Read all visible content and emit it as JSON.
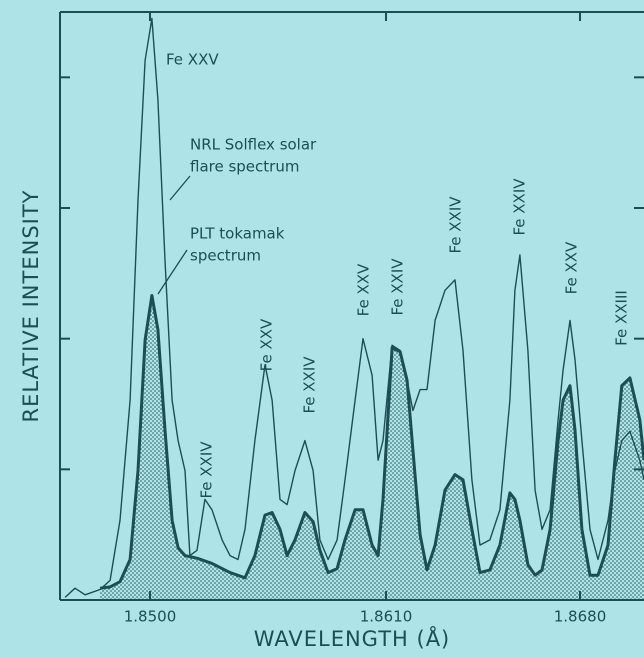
{
  "chart_data": {
    "type": "line",
    "xlabel": "WAVELENGTH (Å)",
    "ylabel": "RELATIVE INTENSITY",
    "xlim": [
      1.8458,
      1.87031
    ],
    "xticks": [
      {
        "value": 1.85,
        "label": "1.8500"
      },
      {
        "value": 1.861,
        "label": "1.8610"
      },
      {
        "value": 1.868,
        "label": "1.8680"
      }
    ],
    "ylim": [
      0,
      4.5
    ],
    "yticks": [
      1,
      2,
      3,
      4
    ],
    "annotations": [
      "Fe XXV",
      "Fe XXIV",
      "Fe XXV",
      "Fe XXIV",
      "Fe XXV",
      "Fe XXIV",
      "Fe XXIV",
      "Fe XXIV",
      "Fe XXV",
      "Fe XXIII"
    ],
    "series": [
      {
        "name": [
          "NRL Solflex solar",
          "flare spectrum"
        ],
        "color": "#1b4f55",
        "filled": false,
        "x": [
          1.84604,
          1.8465,
          1.84697,
          1.84767,
          1.84814,
          1.8486,
          1.84907,
          1.84944,
          1.84977,
          1.85009,
          1.85037,
          1.8507,
          1.85103,
          1.85131,
          1.85163,
          1.85186,
          1.85219,
          1.85256,
          1.85289,
          1.85336,
          1.85373,
          1.8541,
          1.85443,
          1.85489,
          1.85536,
          1.85569,
          1.85606,
          1.85639,
          1.85676,
          1.85722,
          1.8576,
          1.85792,
          1.8583,
          1.85872,
          1.85909,
          1.85956,
          1.85993,
          1.86035,
          1.86063,
          1.86086,
          1.86122,
          1.86151,
          1.86176,
          1.86197,
          1.86223,
          1.86248,
          1.86277,
          1.86313,
          1.86349,
          1.86378,
          1.8641,
          1.86439,
          1.86475,
          1.86511,
          1.86547,
          1.86565,
          1.86583,
          1.86612,
          1.86638,
          1.86663,
          1.86692,
          1.86721,
          1.86739,
          1.86764,
          1.86782,
          1.86807,
          1.86836,
          1.86865,
          1.86901,
          1.86926,
          1.86951,
          1.8698,
          1.87016,
          1.87031
        ],
        "values": [
          0.02,
          0.09,
          0.04,
          0.08,
          0.15,
          0.61,
          1.53,
          3.06,
          4.13,
          4.45,
          3.83,
          2.6,
          1.53,
          1.22,
          0.99,
          0.34,
          0.38,
          0.77,
          0.69,
          0.46,
          0.34,
          0.31,
          0.54,
          1.22,
          1.8,
          1.53,
          0.77,
          0.73,
          0.99,
          1.22,
          0.99,
          0.46,
          0.31,
          0.46,
          0.92,
          1.53,
          2.0,
          1.72,
          1.07,
          1.22,
          1.95,
          1.91,
          1.68,
          1.45,
          1.61,
          1.61,
          2.14,
          2.37,
          2.45,
          1.91,
          0.92,
          0.42,
          0.46,
          0.69,
          1.53,
          2.37,
          2.64,
          1.91,
          0.84,
          0.54,
          0.69,
          1.38,
          1.76,
          2.14,
          1.84,
          1.22,
          0.54,
          0.31,
          0.61,
          0.99,
          1.22,
          1.29,
          1.07,
          0.92
        ]
      },
      {
        "name": [
          "PLT tokamak",
          "spectrum"
        ],
        "color": "#1b4f55",
        "filled": true,
        "x": [
          1.84767,
          1.84814,
          1.8486,
          1.84907,
          1.84944,
          1.84977,
          1.85009,
          1.85037,
          1.8507,
          1.85103,
          1.85131,
          1.85163,
          1.85219,
          1.85289,
          1.85373,
          1.85443,
          1.85489,
          1.85536,
          1.85569,
          1.85606,
          1.85639,
          1.85676,
          1.85722,
          1.8576,
          1.85792,
          1.8583,
          1.85872,
          1.85909,
          1.85956,
          1.85993,
          1.86035,
          1.86063,
          1.86086,
          1.86122,
          1.86151,
          1.86176,
          1.86197,
          1.86223,
          1.86248,
          1.86277,
          1.86313,
          1.86349,
          1.86378,
          1.8641,
          1.86439,
          1.86475,
          1.86511,
          1.86547,
          1.86565,
          1.86583,
          1.86612,
          1.86638,
          1.86663,
          1.86692,
          1.86721,
          1.86739,
          1.86764,
          1.86782,
          1.86807,
          1.86836,
          1.86865,
          1.86901,
          1.86926,
          1.86951,
          1.8698,
          1.87016,
          1.87031
        ],
        "values": [
          0.09,
          0.1,
          0.14,
          0.31,
          0.99,
          1.99,
          2.33,
          2.07,
          1.3,
          0.61,
          0.4,
          0.34,
          0.32,
          0.28,
          0.21,
          0.17,
          0.34,
          0.65,
          0.67,
          0.54,
          0.34,
          0.46,
          0.67,
          0.6,
          0.38,
          0.21,
          0.24,
          0.46,
          0.69,
          0.69,
          0.42,
          0.34,
          0.77,
          1.93,
          1.9,
          1.68,
          1.15,
          0.5,
          0.23,
          0.42,
          0.84,
          0.96,
          0.92,
          0.54,
          0.21,
          0.23,
          0.42,
          0.82,
          0.77,
          0.61,
          0.27,
          0.19,
          0.23,
          0.54,
          1.22,
          1.53,
          1.64,
          1.3,
          0.54,
          0.19,
          0.19,
          0.42,
          1.07,
          1.64,
          1.7,
          1.38,
          1.07
        ]
      }
    ]
  }
}
